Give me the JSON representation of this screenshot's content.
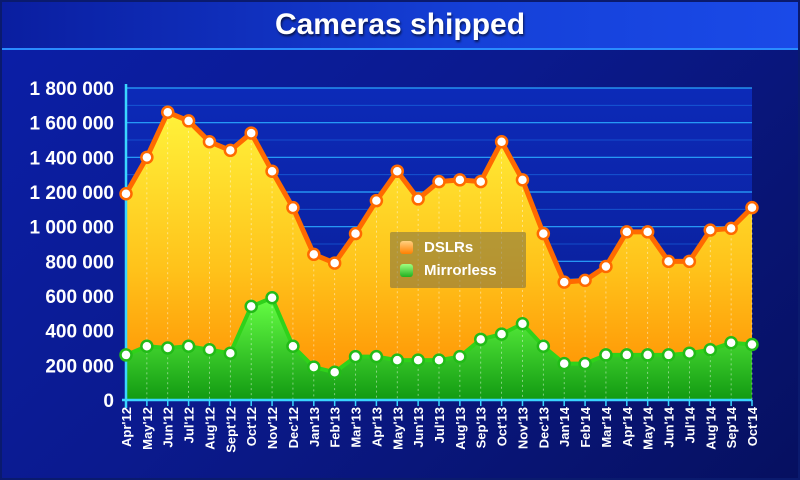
{
  "title": "Cameras shipped",
  "chart_data": {
    "type": "area",
    "title": "Cameras shipped",
    "ylim": [
      0,
      1800000
    ],
    "yticks": [
      "0",
      "200 000",
      "400 000",
      "600 000",
      "800 000",
      "1 000 000",
      "1 200 000",
      "1 400 000",
      "1 600 000",
      "1 800 000"
    ],
    "grid": true,
    "legend_position": "center",
    "categories": [
      "Apr'12",
      "May'12",
      "Jun'12",
      "Jul'12",
      "Aug'12",
      "Sept'12",
      "Oct'12",
      "Nov'12",
      "Dec'12",
      "Jan'13",
      "Feb'13",
      "Mar'13",
      "Apr'13",
      "May'13",
      "Jun'13",
      "Jul'13",
      "Aug'13",
      "Sep'13",
      "Oct'13",
      "Nov'13",
      "Dec'13",
      "Jan'14",
      "Feb'14",
      "Mar'14",
      "Apr'14",
      "May'14",
      "Jun'14",
      "Jul'14",
      "Aug'14",
      "Sep'14",
      "Oct'14"
    ],
    "series": [
      {
        "name": "DSLRs",
        "color": "#ff8c00",
        "values": [
          1190000,
          1400000,
          1660000,
          1610000,
          1490000,
          1440000,
          1540000,
          1320000,
          1110000,
          840000,
          790000,
          960000,
          1150000,
          1320000,
          1160000,
          1260000,
          1270000,
          1260000,
          1490000,
          1270000,
          960000,
          680000,
          690000,
          770000,
          970000,
          970000,
          800000,
          800000,
          980000,
          990000,
          1110000
        ]
      },
      {
        "name": "Mirrorless",
        "color": "#33cc22",
        "values": [
          260000,
          310000,
          300000,
          310000,
          290000,
          270000,
          540000,
          590000,
          310000,
          190000,
          160000,
          250000,
          250000,
          230000,
          230000,
          230000,
          250000,
          350000,
          380000,
          440000,
          310000,
          210000,
          210000,
          260000,
          260000,
          260000,
          260000,
          270000,
          290000,
          330000,
          320000
        ]
      }
    ]
  }
}
